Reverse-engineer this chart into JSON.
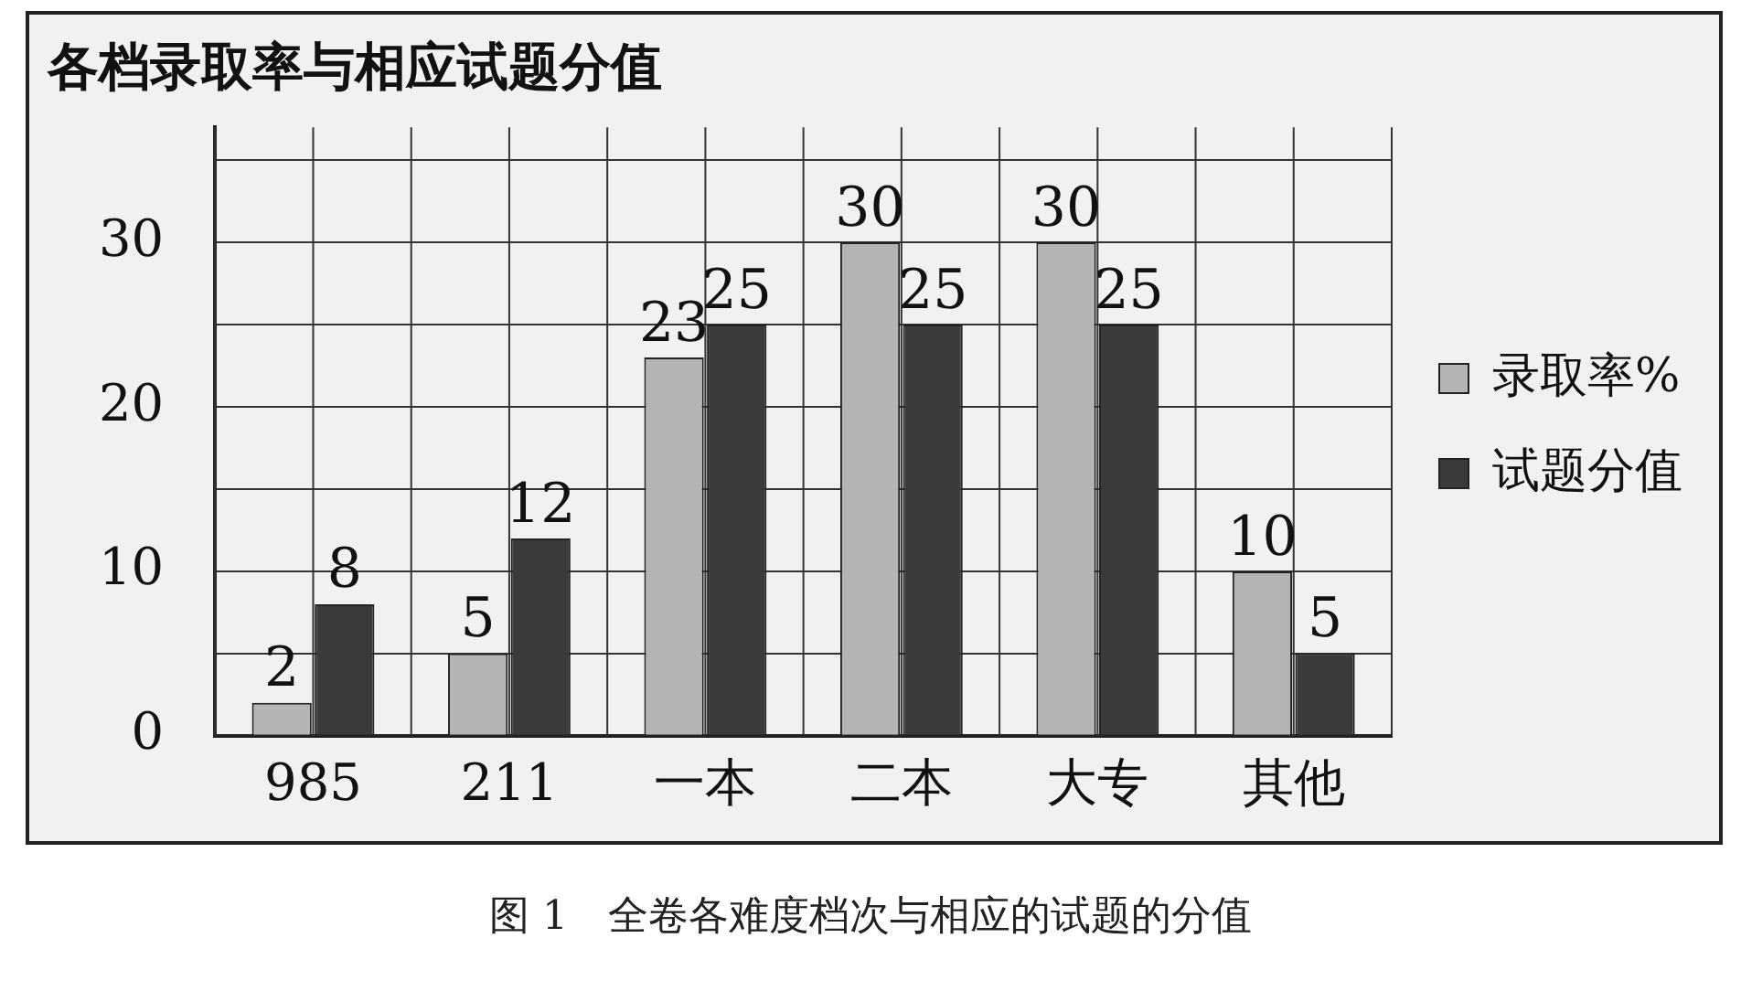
{
  "chart_data": {
    "type": "bar",
    "title": "各档录取率与相应试题分值",
    "categories": [
      "985",
      "211",
      "一本",
      "二本",
      "大专",
      "其他"
    ],
    "series": [
      {
        "name": "录取率%",
        "color": "#b4b4b4",
        "values": [
          2,
          5,
          23,
          30,
          30,
          10
        ]
      },
      {
        "name": "试题分值",
        "color": "#3a3a3a",
        "values": [
          8,
          12,
          25,
          25,
          25,
          5
        ]
      }
    ],
    "ylim": [
      0,
      37
    ],
    "yticks": [
      0,
      {
        "value": 5,
        "label": null
      },
      10,
      {
        "value": 15,
        "label": null
      },
      20,
      {
        "value": 25,
        "label": null
      },
      30,
      {
        "value": 35,
        "label": null
      }
    ],
    "grid": true,
    "legend": "right",
    "data_labels": true,
    "annotations": [
      "图 1　全卷各难度档次与相应的试题的分值"
    ]
  }
}
